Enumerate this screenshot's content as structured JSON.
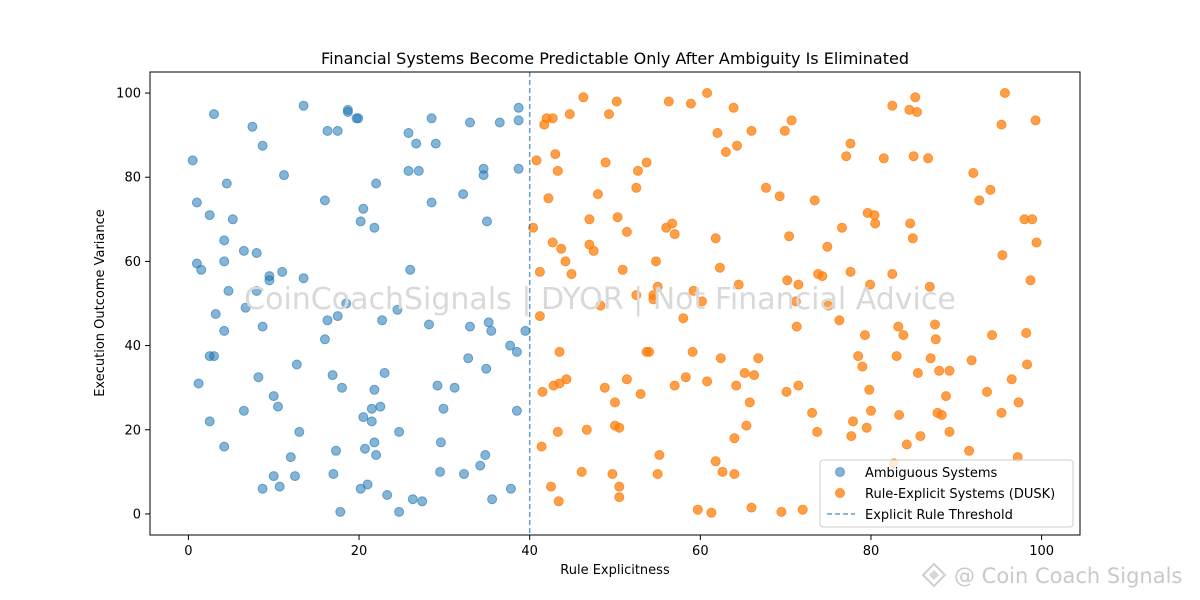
{
  "chart_data": {
    "type": "scatter",
    "title": "Financial Systems Become Predictable Only After Ambiguity Is Eliminated",
    "xlabel": "Rule Explicitness",
    "ylabel": "Execution Outcome Variance",
    "xlim": [
      -4.5,
      104.5
    ],
    "ylim": [
      -5,
      105
    ],
    "xticks": [
      0,
      20,
      40,
      60,
      80,
      100
    ],
    "yticks": [
      0,
      20,
      40,
      60,
      80,
      100
    ],
    "grid": false,
    "legend_position": "lower-right",
    "threshold": {
      "x": 40,
      "label": "Explicit Rule Threshold",
      "color": "#1f77b4"
    },
    "series": [
      {
        "name": "Ambiguous Systems",
        "color": "#1f77b4",
        "points": [
          [
            0.5,
            84
          ],
          [
            1,
            74
          ],
          [
            1,
            59.5
          ],
          [
            1.5,
            58
          ],
          [
            1.2,
            31
          ],
          [
            2.5,
            71
          ],
          [
            2.5,
            22
          ],
          [
            2.5,
            37.5
          ],
          [
            3,
            95
          ],
          [
            3,
            37.5
          ],
          [
            3.2,
            47.5
          ],
          [
            4.2,
            65
          ],
          [
            4.2,
            60
          ],
          [
            4.2,
            43.5
          ],
          [
            4.2,
            16
          ],
          [
            4.5,
            78.5
          ],
          [
            4.7,
            53
          ],
          [
            5.2,
            70
          ],
          [
            6.5,
            62.5
          ],
          [
            6.5,
            24.5
          ],
          [
            6.7,
            49
          ],
          [
            7.5,
            92
          ],
          [
            8,
            62
          ],
          [
            8,
            53
          ],
          [
            8.2,
            32.5
          ],
          [
            8.7,
            87.5
          ],
          [
            8.7,
            44.5
          ],
          [
            8.7,
            6
          ],
          [
            9.5,
            56.5
          ],
          [
            9.5,
            55.5
          ],
          [
            10,
            9
          ],
          [
            10,
            28
          ],
          [
            10.5,
            25.5
          ],
          [
            10.7,
            6.5
          ],
          [
            11,
            57.5
          ],
          [
            11.2,
            80.5
          ],
          [
            12,
            13.5
          ],
          [
            12.5,
            9
          ],
          [
            12.7,
            35.5
          ],
          [
            13,
            19.5
          ],
          [
            13.5,
            97
          ],
          [
            13.5,
            56
          ],
          [
            16,
            74.5
          ],
          [
            16,
            41.5
          ],
          [
            16.3,
            91
          ],
          [
            16.3,
            46
          ],
          [
            16.9,
            33
          ],
          [
            17,
            9.5
          ],
          [
            17.3,
            15
          ],
          [
            17.5,
            47
          ],
          [
            17.5,
            91
          ],
          [
            17.8,
            0.5
          ],
          [
            18,
            30
          ],
          [
            18.5,
            50
          ],
          [
            18.7,
            96
          ],
          [
            18.7,
            95.5
          ],
          [
            19.7,
            94
          ],
          [
            19.9,
            94
          ],
          [
            20.2,
            69.5
          ],
          [
            20.2,
            6
          ],
          [
            20.5,
            72.5
          ],
          [
            20.5,
            23
          ],
          [
            20.7,
            15.5
          ],
          [
            21,
            7
          ],
          [
            21.5,
            25
          ],
          [
            21.5,
            22
          ],
          [
            21.8,
            68
          ],
          [
            21.8,
            29.5
          ],
          [
            21.8,
            17
          ],
          [
            22,
            14
          ],
          [
            22,
            78.5
          ],
          [
            22.5,
            25.5
          ],
          [
            22.7,
            46
          ],
          [
            23,
            33.5
          ],
          [
            23.3,
            4.5
          ],
          [
            24.5,
            48.5
          ],
          [
            24.7,
            19.5
          ],
          [
            24.7,
            0.5
          ],
          [
            25.8,
            90.5
          ],
          [
            25.8,
            81.5
          ],
          [
            26,
            58
          ],
          [
            26.3,
            3.5
          ],
          [
            26.7,
            88
          ],
          [
            27,
            81.5
          ],
          [
            27.4,
            3
          ],
          [
            28.2,
            45
          ],
          [
            28.5,
            74
          ],
          [
            28.5,
            94
          ],
          [
            29,
            88
          ],
          [
            29.2,
            30.5
          ],
          [
            29.5,
            10
          ],
          [
            29.6,
            17
          ],
          [
            29.9,
            25
          ],
          [
            31.2,
            30
          ],
          [
            32.2,
            76
          ],
          [
            32.3,
            9.5
          ],
          [
            32.8,
            37
          ],
          [
            33,
            44.5
          ],
          [
            33,
            93
          ],
          [
            34.2,
            11.5
          ],
          [
            34.6,
            82
          ],
          [
            34.6,
            80.5
          ],
          [
            34.8,
            14
          ],
          [
            34.9,
            34.5
          ],
          [
            35,
            69.5
          ],
          [
            35.2,
            45.5
          ],
          [
            35.5,
            43.5
          ],
          [
            35.6,
            3.5
          ],
          [
            36.5,
            93
          ],
          [
            37.7,
            40
          ],
          [
            37.8,
            6
          ],
          [
            38.5,
            24.5
          ],
          [
            38.5,
            38.5
          ],
          [
            38.7,
            96.5
          ],
          [
            38.7,
            93.5
          ],
          [
            38.7,
            82
          ],
          [
            39.5,
            43.5
          ]
        ]
      },
      {
        "name": "Rule-Explicit Systems (DUSK)",
        "color": "#ff7f0e",
        "points": [
          [
            40.4,
            68
          ],
          [
            40.8,
            84
          ],
          [
            41.2,
            57.5
          ],
          [
            41.2,
            47
          ],
          [
            41.4,
            16
          ],
          [
            41.5,
            29
          ],
          [
            41.7,
            92.5
          ],
          [
            42,
            94
          ],
          [
            42.2,
            75
          ],
          [
            42.5,
            6.5
          ],
          [
            42.7,
            64.5
          ],
          [
            42.7,
            94
          ],
          [
            42.8,
            30.5
          ],
          [
            43,
            85.5
          ],
          [
            43.3,
            81.5
          ],
          [
            43.3,
            19.5
          ],
          [
            43.4,
            3
          ],
          [
            43.5,
            31
          ],
          [
            43.5,
            38.5
          ],
          [
            43.7,
            63
          ],
          [
            44.2,
            60
          ],
          [
            44.3,
            32
          ],
          [
            44.7,
            95
          ],
          [
            44.9,
            57
          ],
          [
            46.1,
            10
          ],
          [
            46.3,
            99
          ],
          [
            46.7,
            20
          ],
          [
            47,
            70
          ],
          [
            47,
            64
          ],
          [
            47.5,
            62.5
          ],
          [
            48,
            76
          ],
          [
            48.3,
            49.5
          ],
          [
            48.8,
            30
          ],
          [
            48.9,
            83.5
          ],
          [
            49.3,
            95
          ],
          [
            49.7,
            9.5
          ],
          [
            50,
            26.5
          ],
          [
            50,
            21
          ],
          [
            50.2,
            98
          ],
          [
            50.3,
            70.5
          ],
          [
            50.5,
            6.5
          ],
          [
            50.5,
            4
          ],
          [
            50.5,
            20.5
          ],
          [
            50.9,
            58
          ],
          [
            51.4,
            67
          ],
          [
            51.4,
            32
          ],
          [
            52.5,
            52
          ],
          [
            52.5,
            77.5
          ],
          [
            52.7,
            81.5
          ],
          [
            53,
            28.5
          ],
          [
            53.7,
            83.5
          ],
          [
            53.7,
            38.5
          ],
          [
            54,
            38.5
          ],
          [
            54.5,
            51
          ],
          [
            54.5,
            52
          ],
          [
            54.8,
            60
          ],
          [
            55,
            54
          ],
          [
            55,
            9.5
          ],
          [
            55.2,
            14
          ],
          [
            56,
            68
          ],
          [
            56.3,
            98
          ],
          [
            56.7,
            69
          ],
          [
            57,
            66.5
          ],
          [
            57,
            30.5
          ],
          [
            58,
            46.5
          ],
          [
            58.3,
            32.5
          ],
          [
            58.9,
            97.5
          ],
          [
            59.1,
            38.5
          ],
          [
            59.2,
            53
          ],
          [
            59.7,
            1
          ],
          [
            60.2,
            50.5
          ],
          [
            60.8,
            100
          ],
          [
            60.8,
            31.5
          ],
          [
            61.3,
            0.3
          ],
          [
            61.8,
            65.5
          ],
          [
            61.8,
            12.5
          ],
          [
            62,
            90.5
          ],
          [
            62.3,
            58.5
          ],
          [
            62.4,
            37
          ],
          [
            62.6,
            10
          ],
          [
            63,
            86
          ],
          [
            63.9,
            96.5
          ],
          [
            64,
            9.5
          ],
          [
            64,
            18
          ],
          [
            64.2,
            30.5
          ],
          [
            64.3,
            87.5
          ],
          [
            64.5,
            54.5
          ],
          [
            65.2,
            33.5
          ],
          [
            65.4,
            21
          ],
          [
            65.8,
            26.5
          ],
          [
            66,
            91
          ],
          [
            66,
            1.5
          ],
          [
            66.3,
            33
          ],
          [
            66.8,
            37
          ],
          [
            67.7,
            77.5
          ],
          [
            69.3,
            75.5
          ],
          [
            69.5,
            0.5
          ],
          [
            69.9,
            91
          ],
          [
            70.1,
            29
          ],
          [
            70.2,
            55.5
          ],
          [
            70.4,
            66
          ],
          [
            70.7,
            93.5
          ],
          [
            71.2,
            50.5
          ],
          [
            71.3,
            44.5
          ],
          [
            71.5,
            54.5
          ],
          [
            71.5,
            30.5
          ],
          [
            72,
            1
          ],
          [
            73.1,
            24
          ],
          [
            73.4,
            74.5
          ],
          [
            73.7,
            19.5
          ],
          [
            73.8,
            57
          ],
          [
            74.3,
            56.5
          ],
          [
            74.9,
            63.5
          ],
          [
            75,
            49.5
          ],
          [
            76.3,
            46
          ],
          [
            76.6,
            68
          ],
          [
            77.1,
            85
          ],
          [
            77.6,
            88
          ],
          [
            77.6,
            57.5
          ],
          [
            77.7,
            18.5
          ],
          [
            77.9,
            22
          ],
          [
            78.5,
            37.5
          ],
          [
            79,
            35
          ],
          [
            79.3,
            42.5
          ],
          [
            79.5,
            20.5
          ],
          [
            79.6,
            71.5
          ],
          [
            79.8,
            29.5
          ],
          [
            79.9,
            54.5
          ],
          [
            80,
            24.5
          ],
          [
            80.4,
            71
          ],
          [
            80.5,
            69
          ],
          [
            81.5,
            84.5
          ],
          [
            82.5,
            97
          ],
          [
            82.5,
            57
          ],
          [
            82.7,
            12
          ],
          [
            83,
            37.5
          ],
          [
            83.2,
            44.5
          ],
          [
            83.3,
            23.5
          ],
          [
            83.8,
            42.5
          ],
          [
            84.2,
            16.5
          ],
          [
            84.5,
            96
          ],
          [
            84.6,
            69
          ],
          [
            84.9,
            65.5
          ],
          [
            85,
            85
          ],
          [
            85.2,
            99
          ],
          [
            85.4,
            95.5
          ],
          [
            85.5,
            33.5
          ],
          [
            85.8,
            18.5
          ],
          [
            86.7,
            84.5
          ],
          [
            86.9,
            54
          ],
          [
            87,
            37
          ],
          [
            87.5,
            45
          ],
          [
            87.6,
            41.5
          ],
          [
            87.8,
            24
          ],
          [
            88,
            34
          ],
          [
            88.3,
            23.5
          ],
          [
            88.8,
            28
          ],
          [
            89.2,
            19.5
          ],
          [
            89.2,
            34
          ],
          [
            91.5,
            15
          ],
          [
            91.8,
            36.5
          ],
          [
            92,
            81
          ],
          [
            92.7,
            74.5
          ],
          [
            93.6,
            29
          ],
          [
            94,
            77
          ],
          [
            94.2,
            42.5
          ],
          [
            95.3,
            92.5
          ],
          [
            95.3,
            24
          ],
          [
            95.4,
            61.5
          ],
          [
            95.7,
            100
          ],
          [
            96.5,
            32
          ],
          [
            97.2,
            13.5
          ],
          [
            97.3,
            26.5
          ],
          [
            98,
            70
          ],
          [
            98.2,
            43
          ],
          [
            98.3,
            35.5
          ],
          [
            98.7,
            55.5
          ],
          [
            98.9,
            70
          ],
          [
            99.3,
            93.5
          ],
          [
            99.4,
            64.5
          ]
        ]
      }
    ]
  },
  "watermark": "CoinCoachSignals | DYOR | Not Financial Advice",
  "corner_mark": "@ Coin Coach Signals"
}
